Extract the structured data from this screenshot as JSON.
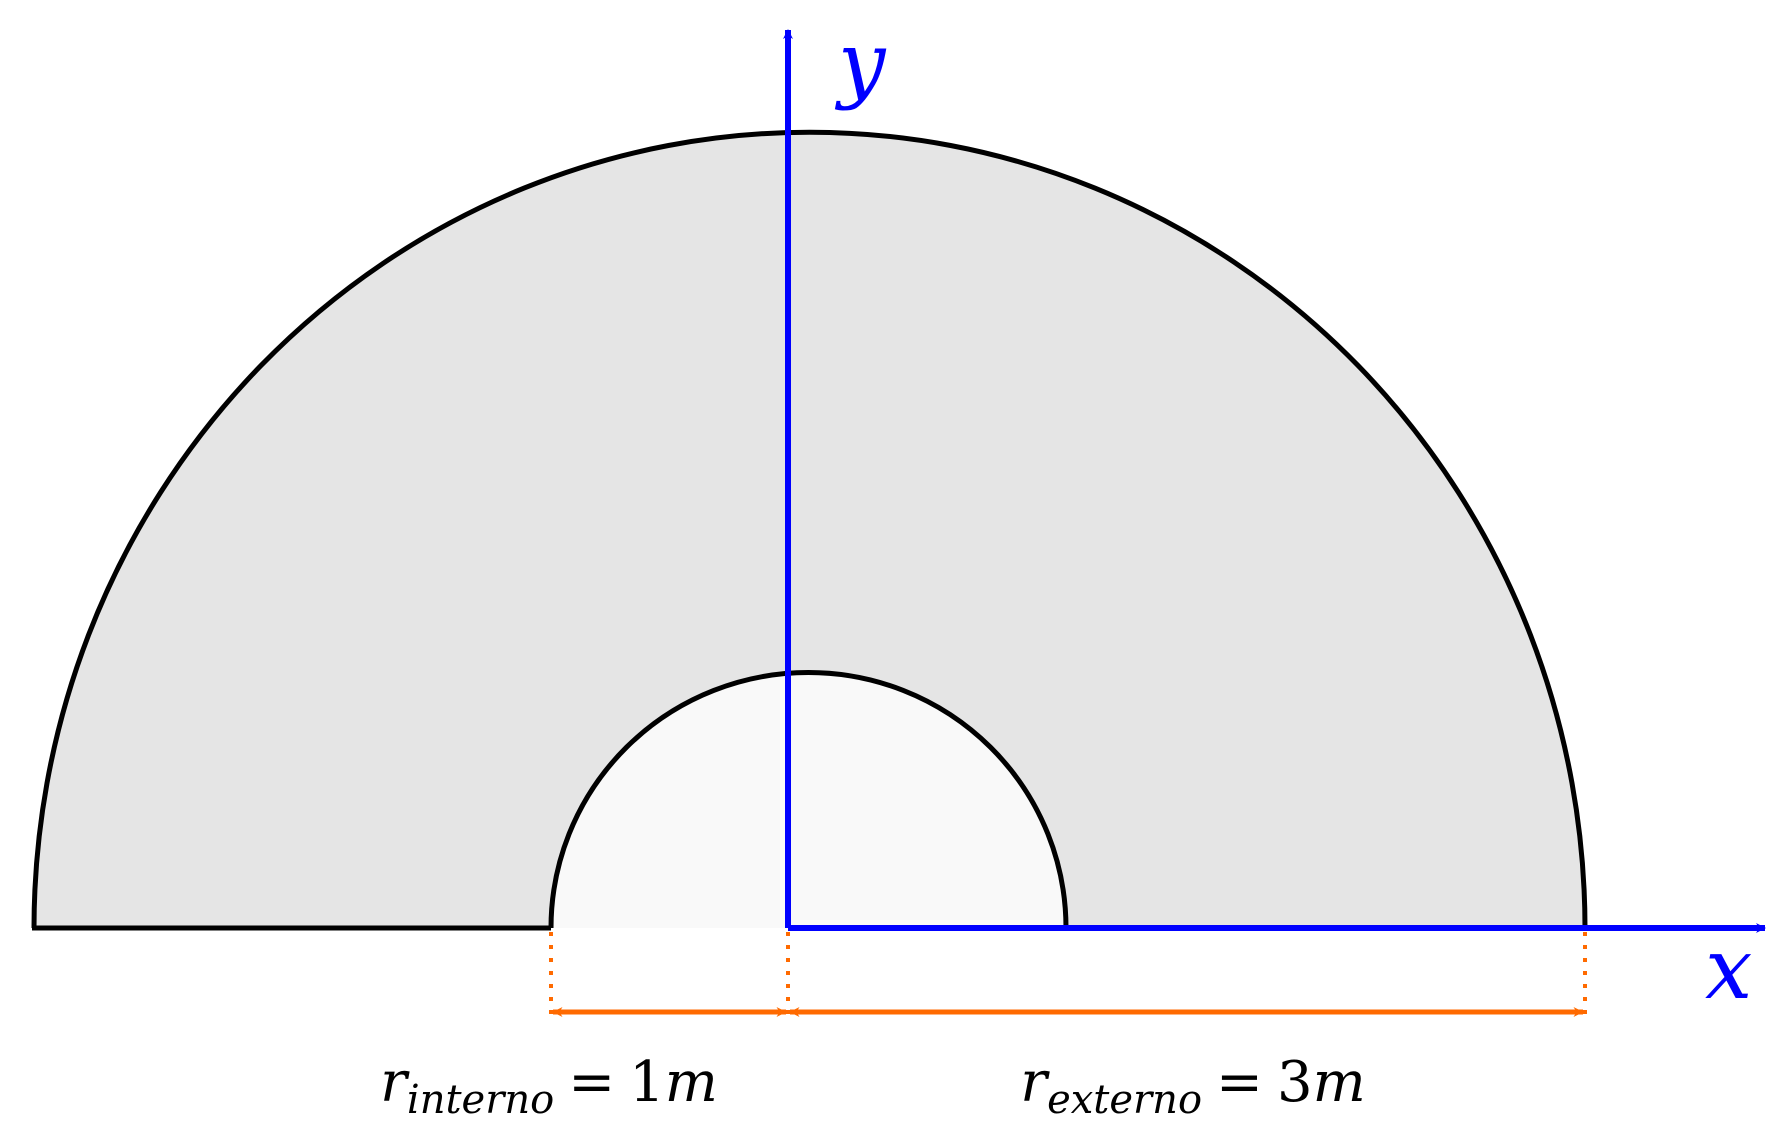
{
  "axes": {
    "x_label": "x",
    "y_label": "y",
    "color": "#0000ff"
  },
  "shapes": {
    "outer_region": {
      "name": "half-annulus",
      "radius_m": 3,
      "fill": "#e5e5e5",
      "stroke": "#000000"
    },
    "inner_region": {
      "name": "inner-half-disc",
      "radius_m": 1,
      "fill": "#f9f9f9",
      "stroke": "#000000"
    }
  },
  "dimensions": {
    "color": "#ff6a00",
    "inner": {
      "symbol": "r",
      "subscript": "interno",
      "equals": "=",
      "value": "1",
      "unit": "m"
    },
    "outer": {
      "symbol": "r",
      "subscript": "externo",
      "equals": "=",
      "value": "3",
      "unit": "m"
    }
  }
}
